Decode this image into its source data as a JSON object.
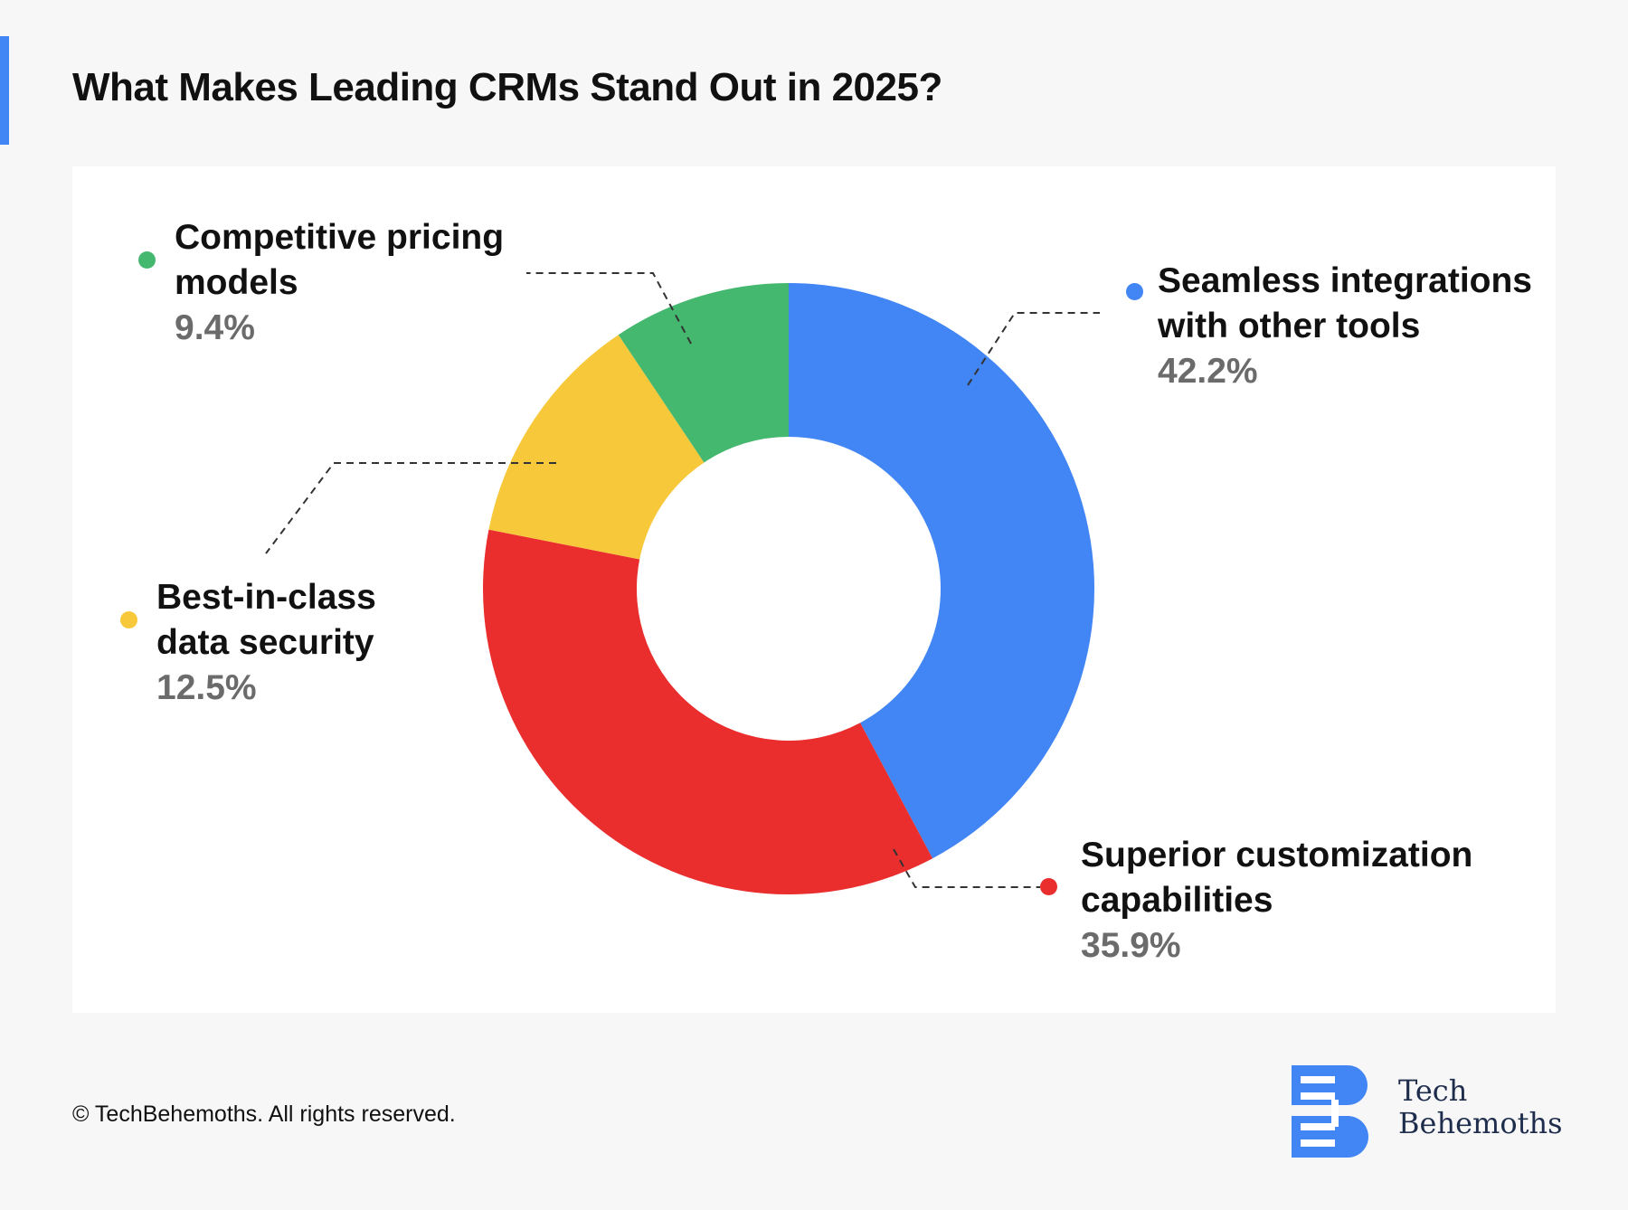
{
  "title": "What Makes Leading CRMs Stand Out in 2025?",
  "colors": {
    "blue": "#4285f4",
    "red": "#ea2e2e",
    "yellow": "#f8c83b",
    "green": "#45b86f",
    "accent": "#4285f4"
  },
  "chart_data": {
    "type": "pie",
    "style": "donut",
    "slices": [
      {
        "label": "Seamless integrations with other tools",
        "value": 42.2,
        "display": "42.2%",
        "color": "#4285f4"
      },
      {
        "label": "Superior customization capabilities",
        "value": 35.9,
        "display": "35.9%",
        "color": "#ea2e2e"
      },
      {
        "label": "Best-in-class data security",
        "value": 12.5,
        "display": "12.5%",
        "color": "#f8c83b"
      },
      {
        "label": "Competitive pricing models",
        "value": 9.4,
        "display": "9.4%",
        "color": "#45b86f"
      }
    ]
  },
  "legend": {
    "integrations": {
      "line1": "Seamless integrations",
      "line2": "with other tools",
      "value": "42.2%"
    },
    "customization": {
      "line1": "Superior customization",
      "line2": "capabilities",
      "value": "35.9%"
    },
    "security": {
      "line1": "Best-in-class",
      "line2": "data security",
      "value": "12.5%"
    },
    "pricing": {
      "line1": "Competitive pricing",
      "line2": "models",
      "value": "9.4%"
    }
  },
  "footer": {
    "copyright": "© TechBehemoths. All rights reserved.",
    "logo_line1": "Tech",
    "logo_line2": "Behemoths",
    "logo_icon": "techbehemoths-logo-icon"
  }
}
